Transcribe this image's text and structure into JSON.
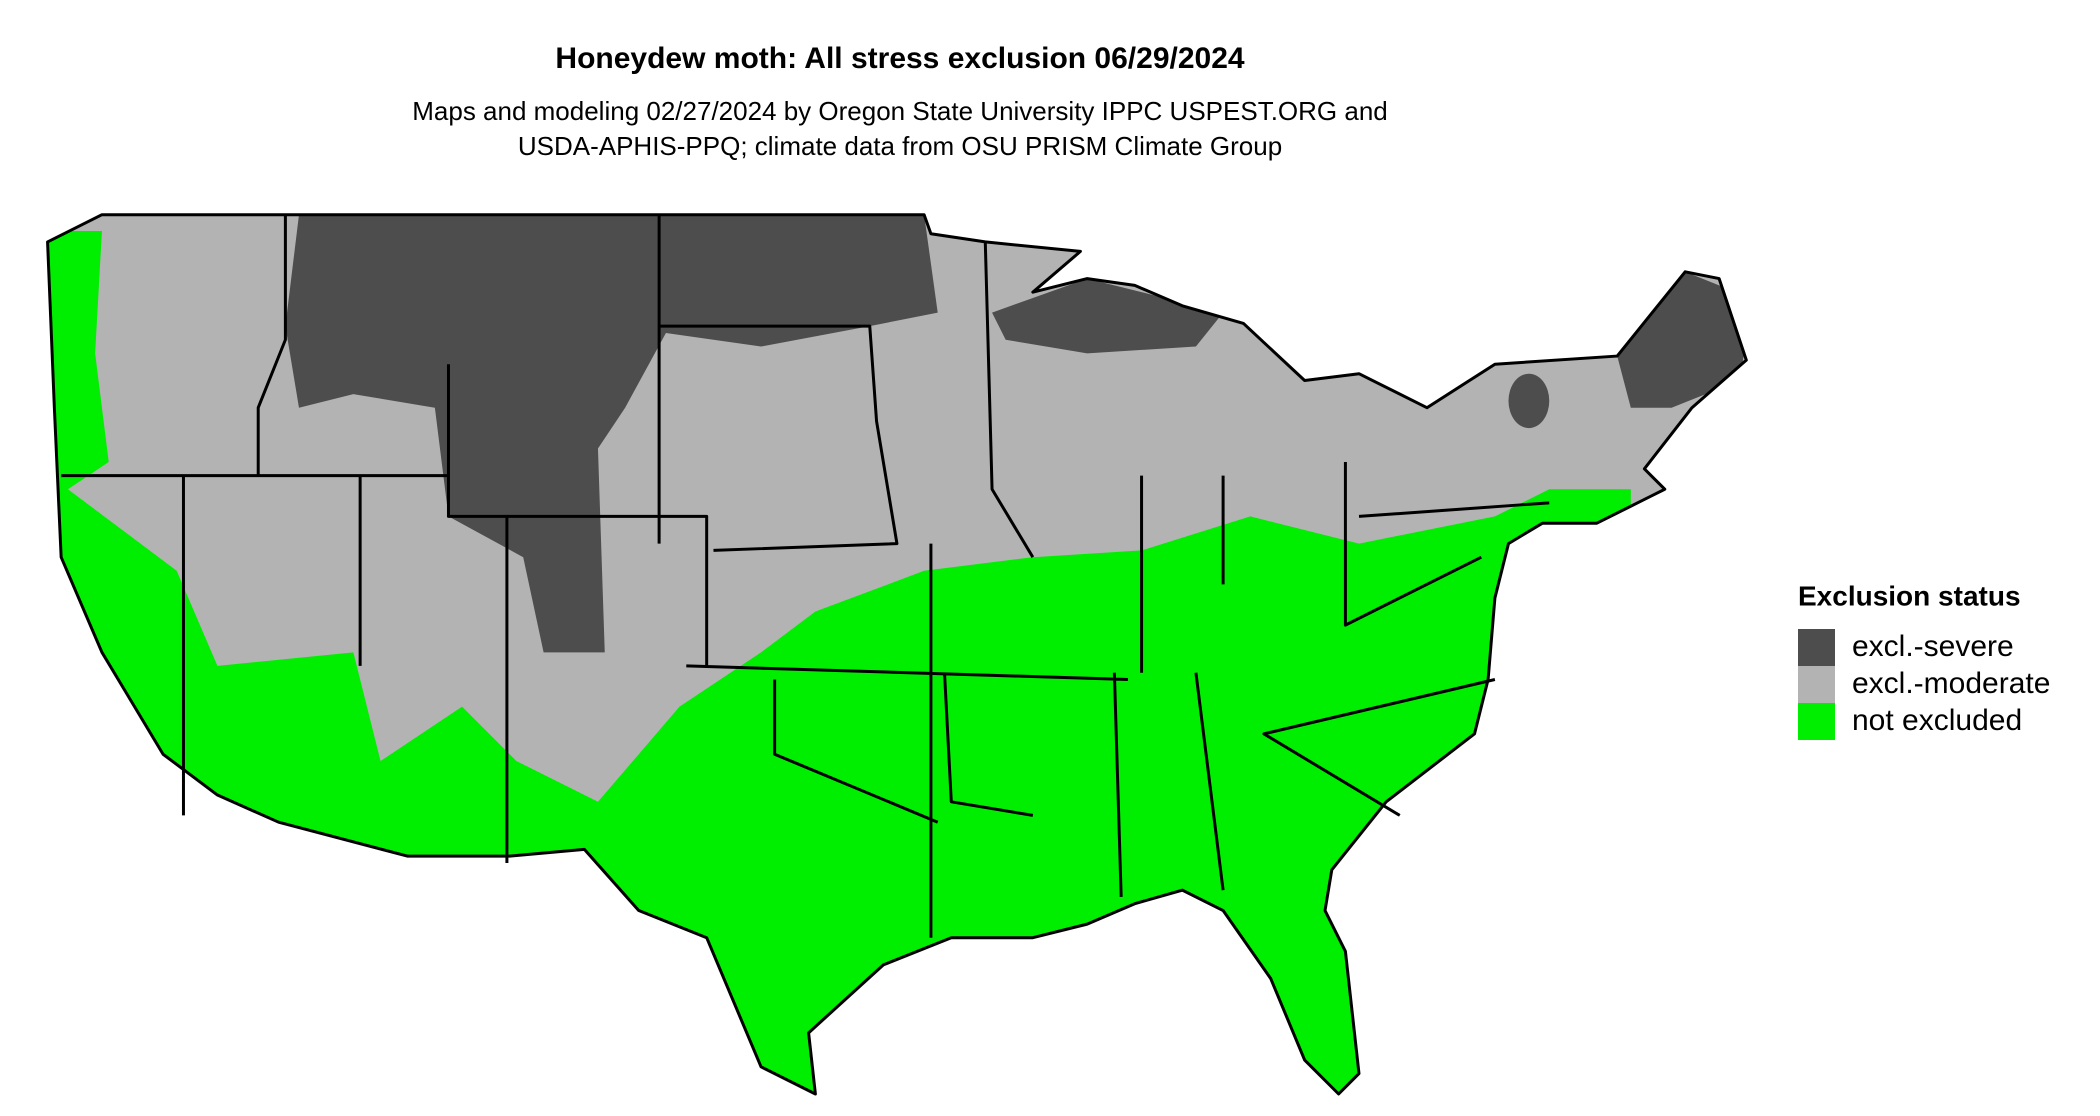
{
  "title": "Honeydew moth: All stress exclusion 06/29/2024",
  "subtitle": [
    "Maps and modeling 02/27/2024 by Oregon State University IPPC USPEST.ORG and",
    "USDA-APHIS-PPQ; climate data from OSU PRISM Climate Group"
  ],
  "legend": {
    "title": "Exclusion status",
    "items": [
      {
        "label": "excl.-severe",
        "color": "#4d4d4d"
      },
      {
        "label": "excl.-moderate",
        "color": "#b3b3b3"
      },
      {
        "label": "not excluded",
        "color": "#00ee00"
      }
    ]
  }
}
